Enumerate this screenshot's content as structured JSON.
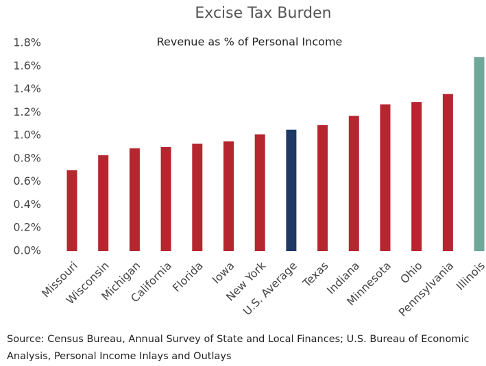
{
  "chart_data": {
    "type": "bar",
    "title": "Excise Tax Burden",
    "subtitle": "Revenue as % of Personal Income",
    "categories": [
      "Missouri",
      "Wisconsin",
      "Michigan",
      "California",
      "Florida",
      "Iowa",
      "New York",
      "U.S. Average",
      "Texas",
      "Indiana",
      "Minnesota",
      "Ohio",
      "Pennsylvania",
      "Illinois"
    ],
    "values": [
      0.7,
      0.83,
      0.89,
      0.9,
      0.93,
      0.95,
      1.01,
      1.05,
      1.09,
      1.17,
      1.27,
      1.29,
      1.36,
      1.68
    ],
    "colors": [
      "#b5262f",
      "#b5262f",
      "#b5262f",
      "#b5262f",
      "#b5262f",
      "#b5262f",
      "#b5262f",
      "#1f3864",
      "#b5262f",
      "#b5262f",
      "#b5262f",
      "#b5262f",
      "#b5262f",
      "#6fa89a"
    ],
    "ylim": [
      0,
      1.8
    ],
    "yticks": [
      {
        "value": 0,
        "label": "0.0%"
      },
      {
        "value": 0.2,
        "label": "0.2%"
      },
      {
        "value": 0.4,
        "label": "0.4%"
      },
      {
        "value": 0.6,
        "label": "0.6%"
      },
      {
        "value": 0.8,
        "label": "0.8%"
      },
      {
        "value": 1.0,
        "label": "1.0%"
      },
      {
        "value": 1.2,
        "label": "1.2%"
      },
      {
        "value": 1.4,
        "label": "1.4%"
      },
      {
        "value": 1.6,
        "label": "1.6%"
      },
      {
        "value": 1.8,
        "label": "1.8%"
      }
    ],
    "grid": false,
    "source": "Source: Census Bureau, Annual Survey of State and Local Finances; U.S. Bureau of Economic Analysis, Personal Income Inlays and Outlays"
  }
}
